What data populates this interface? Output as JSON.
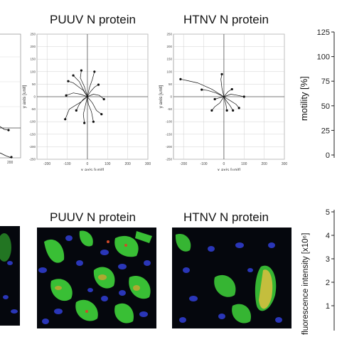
{
  "top_titles": {
    "puuv": "PUUV N protein",
    "htnv": "HTNV N protein"
  },
  "bottom_titles": {
    "puuv": "PUUV N protein",
    "htnv": "HTNV N protein"
  },
  "tracks_puuv": {
    "x_label": "x axis [unit]",
    "y_label": "y axis [unit]",
    "x_ticks": [
      "-200",
      "-100",
      "0",
      "100",
      "200",
      "300"
    ],
    "y_ticks": [
      "250",
      "200",
      "150",
      "100",
      "50",
      "0",
      "-50",
      "-100",
      "-150",
      "-200",
      "-250"
    ]
  },
  "tracks_htnv": {
    "x_label": "x axis [unit]",
    "y_label": "y axis [unit]",
    "x_ticks": [
      "-200",
      "-100",
      "0",
      "100",
      "200",
      "300"
    ],
    "y_ticks": [
      "250",
      "200",
      "150",
      "100",
      "50",
      "0",
      "-50",
      "-100",
      "-150",
      "-200",
      "-250"
    ]
  },
  "tracks_left_partial": {
    "x_ticks": [
      "200"
    ]
  },
  "motility_axis": {
    "label": "motility [%]",
    "ticks": [
      "125",
      "100",
      "75",
      "50",
      "25",
      "0"
    ]
  },
  "fluorescence_axis": {
    "label": "fluorescence intensity [x10⁶]",
    "ticks": [
      "5",
      "4",
      "3",
      "2",
      "1"
    ]
  },
  "colors": {
    "track": "#111111",
    "grid": "#d0d0d0",
    "green": "#3fd43a",
    "nuclei": "#2230b0",
    "red": "#d04a2a"
  },
  "chart_data": [
    {
      "type": "scatter",
      "title": "PUUV N protein",
      "xlabel": "x axis [unit]",
      "ylabel": "y axis [unit]",
      "xlim": [
        -250,
        300
      ],
      "ylim": [
        -250,
        250
      ],
      "grid": true,
      "tracks": [
        [
          [
            0,
            0
          ],
          [
            -20,
            25
          ],
          [
            -45,
            40
          ],
          [
            -70,
            55
          ],
          [
            -95,
            62
          ]
        ],
        [
          [
            0,
            0
          ],
          [
            -15,
            40
          ],
          [
            -35,
            75
          ],
          [
            -30,
            105
          ]
        ],
        [
          [
            0,
            0
          ],
          [
            10,
            35
          ],
          [
            25,
            70
          ],
          [
            35,
            100
          ]
        ],
        [
          [
            0,
            0
          ],
          [
            30,
            10
          ],
          [
            60,
            5
          ],
          [
            82,
            -10
          ]
        ],
        [
          [
            0,
            0
          ],
          [
            25,
            -25
          ],
          [
            45,
            -55
          ],
          [
            70,
            -70
          ]
        ],
        [
          [
            0,
            0
          ],
          [
            -10,
            -35
          ],
          [
            -20,
            -70
          ],
          [
            -15,
            -105
          ]
        ],
        [
          [
            0,
            0
          ],
          [
            -30,
            -20
          ],
          [
            -60,
            -35
          ],
          [
            -90,
            -50
          ],
          [
            -110,
            -90
          ]
        ],
        [
          [
            0,
            0
          ],
          [
            -35,
            10
          ],
          [
            -70,
            15
          ],
          [
            -105,
            5
          ]
        ],
        [
          [
            0,
            0
          ],
          [
            15,
            20
          ],
          [
            35,
            38
          ],
          [
            55,
            48
          ]
        ],
        [
          [
            0,
            0
          ],
          [
            -20,
            -10
          ],
          [
            -40,
            -30
          ],
          [
            -55,
            -55
          ]
        ],
        [
          [
            0,
            0
          ],
          [
            5,
            -30
          ],
          [
            20,
            -60
          ],
          [
            30,
            -100
          ]
        ],
        [
          [
            0,
            0
          ],
          [
            -25,
            35
          ],
          [
            -40,
            60
          ],
          [
            -70,
            85
          ]
        ]
      ]
    },
    {
      "type": "scatter",
      "title": "HTNV N protein",
      "xlabel": "x axis [unit]",
      "ylabel": "y axis [unit]",
      "xlim": [
        -250,
        300
      ],
      "ylim": [
        -250,
        250
      ],
      "grid": true,
      "tracks": [
        [
          [
            0,
            0
          ],
          [
            -60,
            30
          ],
          [
            -130,
            55
          ],
          [
            -185,
            65
          ],
          [
            -215,
            70
          ]
        ],
        [
          [
            0,
            0
          ],
          [
            -40,
            15
          ],
          [
            -80,
            25
          ],
          [
            -110,
            28
          ]
        ],
        [
          [
            0,
            0
          ],
          [
            -10,
            35
          ],
          [
            -15,
            70
          ],
          [
            -10,
            90
          ]
        ],
        [
          [
            0,
            0
          ],
          [
            35,
            10
          ],
          [
            70,
            5
          ],
          [
            100,
            0
          ]
        ],
        [
          [
            0,
            0
          ],
          [
            30,
            -15
          ],
          [
            60,
            -30
          ],
          [
            75,
            -45
          ]
        ],
        [
          [
            0,
            0
          ],
          [
            10,
            -30
          ],
          [
            15,
            -55
          ]
        ],
        [
          [
            0,
            0
          ],
          [
            -20,
            -25
          ],
          [
            -45,
            -40
          ],
          [
            -60,
            -55
          ]
        ],
        [
          [
            0,
            0
          ],
          [
            20,
            20
          ],
          [
            40,
            30
          ]
        ],
        [
          [
            0,
            0
          ],
          [
            -25,
            -5
          ],
          [
            -45,
            -10
          ]
        ],
        [
          [
            0,
            0
          ],
          [
            15,
            -20
          ],
          [
            30,
            -35
          ],
          [
            45,
            -55
          ]
        ]
      ]
    }
  ]
}
